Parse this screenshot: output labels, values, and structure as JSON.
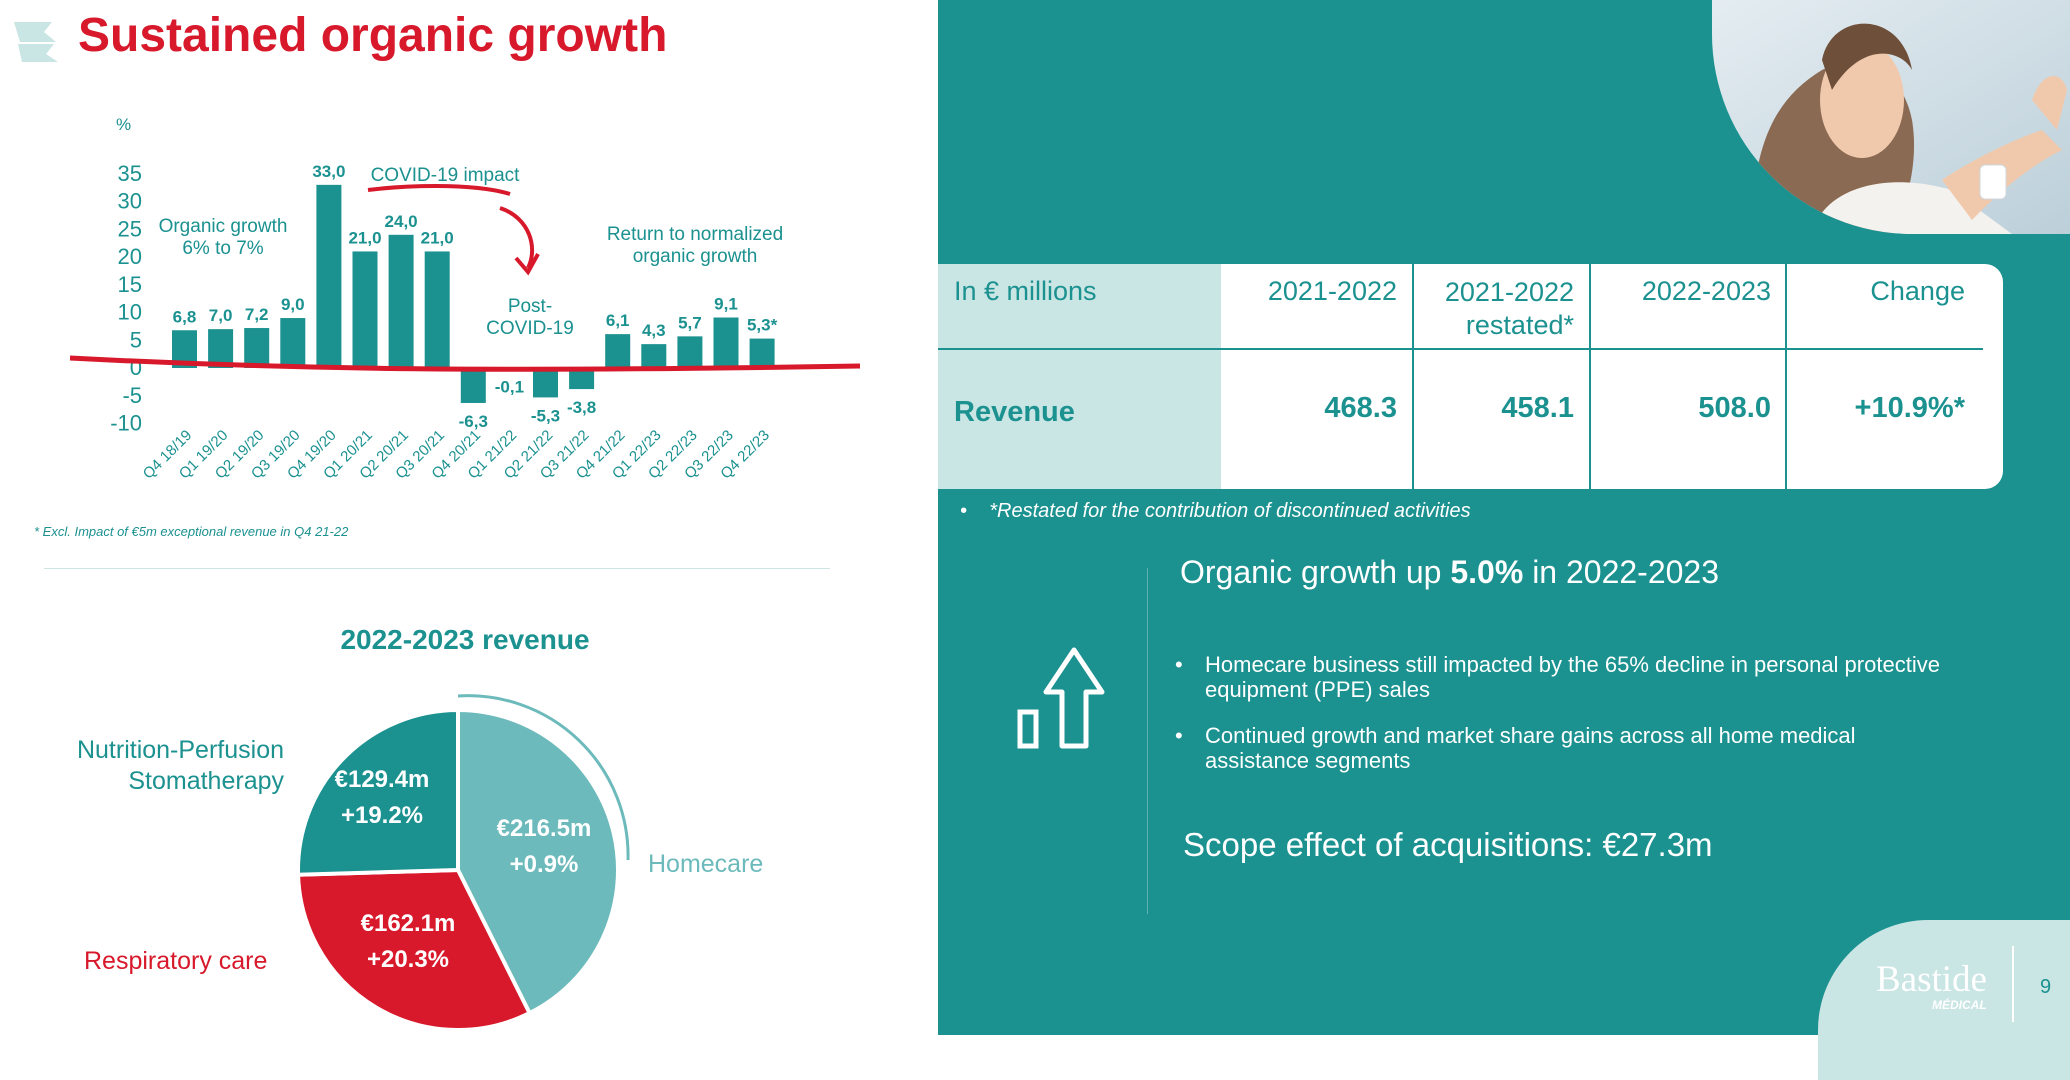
{
  "title": "Sustained organic growth",
  "chart_data": [
    {
      "type": "bar",
      "ylabel": "%",
      "ylim": [
        -10,
        35
      ],
      "yticks": [
        "35",
        "30",
        "25",
        "20",
        "15",
        "10",
        "5",
        "0",
        "-5",
        "-10"
      ],
      "categories": [
        "Q4 18/19",
        "Q1 19/20",
        "Q2 19/20",
        "Q3 19/20",
        "Q4 19/20",
        "Q1 20/21",
        "Q2 20/21",
        "Q3 20/21",
        "Q4 20/21",
        "Q1 21/22",
        "Q2 21/22",
        "Q3 21/22",
        "Q4 21/22",
        "Q1 22/23",
        "Q2 22/23",
        "Q3 22/23",
        "Q4 22/23"
      ],
      "values": [
        6.8,
        7.0,
        7.2,
        9.0,
        33.0,
        21.0,
        24.0,
        21.0,
        -6.3,
        -0.1,
        -5.3,
        -3.8,
        6.1,
        4.3,
        5.7,
        9.1,
        5.3
      ],
      "data_labels": [
        "6,8",
        "7,0",
        "7,2",
        "9,0",
        "33,0",
        "21,0",
        "24,0",
        "21,0",
        "-6,3",
        "-0,1",
        "-5,3",
        "-3,8",
        "6,1",
        "4,3",
        "5,7",
        "9,1",
        "5,3*"
      ],
      "annotations": {
        "organic_growth": "Organic growth",
        "organic_growth_range": "6% to 7%",
        "covid_impact": "COVID-19 impact",
        "post_covid_1": "Post-",
        "post_covid_2": "COVID-19",
        "return_1": "Return to normalized",
        "return_2": "organic growth"
      },
      "footnote": "* Excl. Impact of €5m  exceptional revenue in Q4 21-22"
    },
    {
      "type": "pie",
      "title": "2022-2023 revenue",
      "slices": [
        {
          "name": "Homecare",
          "value": 216.5,
          "value_label": "€216.5m",
          "growth": "+0.9%",
          "color": "#6cbabb"
        },
        {
          "name": "Respiratory care",
          "value": 162.1,
          "value_label": "€162.1m",
          "growth": "+20.3%",
          "color": "#d7192b"
        },
        {
          "name_line1": "Nutrition-Perfusion",
          "name_line2": "Stomatherapy",
          "value": 129.4,
          "value_label": "€129.4m",
          "growth": "+19.2%",
          "color": "#1b9190"
        }
      ]
    }
  ],
  "table": {
    "header_label": "In € millions",
    "columns": [
      {
        "line1": "2021-2022",
        "line2": ""
      },
      {
        "line1": "2021-2022",
        "line2": "restated*"
      },
      {
        "line1": "2022-2023",
        "line2": ""
      },
      {
        "line1": "Change",
        "line2": ""
      }
    ],
    "row_label": "Revenue",
    "row_values": [
      "468.3",
      "458.1",
      "508.0",
      "+10.9%*"
    ]
  },
  "restated_note": "*Restated for the contribution of discontinued activities",
  "organic": {
    "prefix": "Organic growth up ",
    "value": "5.0%",
    "suffix": " in 2022-2023"
  },
  "bullets": [
    "Homecare business still impacted by the 65% decline in personal protective equipment (PPE) sales",
    "Continued growth and market share gains across all home medical assistance segments"
  ],
  "scope": "Scope effect of acquisitions: €27.3m",
  "logo": {
    "name": "Bastide",
    "sub": "MÉDICAL"
  },
  "page_number": "9",
  "colors": {
    "teal": "#1b9190",
    "red": "#d7192b",
    "light_teal": "#6cbabb",
    "pale": "#c9e5e4"
  }
}
